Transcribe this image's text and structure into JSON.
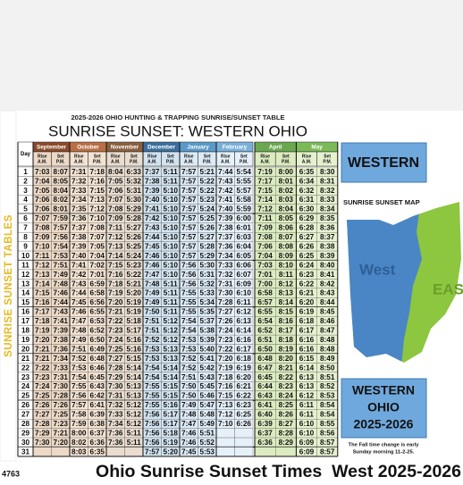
{
  "side_label": "SUNRISE SUNSET TABLES",
  "header": {
    "subtitle": "2025-2026 OHIO HUNTING & TRAPPING SUNRISE/SUNSET TABLE",
    "title": "SUNRISE SUNSET: WESTERN OHIO"
  },
  "table": {
    "day_label": "Day",
    "months": [
      "September",
      "October",
      "November",
      "December",
      "January",
      "February",
      "April",
      "May"
    ],
    "rise": "Rise",
    "set": "Set",
    "am": "A.M.",
    "pm": "P.M.",
    "rows": [
      [
        1,
        "7:03",
        "8:07",
        "7:31",
        "7:18",
        "8:04",
        "6:33",
        "7:37",
        "5:11",
        "7:57",
        "5:21",
        "7:44",
        "5:54",
        "7:19",
        "8:00",
        "6:35",
        "8:30"
      ],
      [
        2,
        "7:04",
        "8:05",
        "7:32",
        "7:16",
        "7:05",
        "5:32",
        "7:38",
        "5:11",
        "7:57",
        "5:22",
        "7:43",
        "5:55",
        "7:17",
        "8:01",
        "6:34",
        "8:31"
      ],
      [
        3,
        "7:05",
        "8:04",
        "7:33",
        "7:15",
        "7:06",
        "5:31",
        "7:39",
        "5:10",
        "7:57",
        "5:22",
        "7:42",
        "5:57",
        "7:15",
        "8:02",
        "6:32",
        "8:32"
      ],
      [
        4,
        "7:06",
        "8:02",
        "7:34",
        "7:13",
        "7:07",
        "5:30",
        "7:40",
        "5:10",
        "7:57",
        "5:23",
        "7:41",
        "5:58",
        "7:14",
        "8:03",
        "6:31",
        "8:33"
      ],
      [
        5,
        "7:06",
        "8:01",
        "7:35",
        "7:12",
        "7:08",
        "5:29",
        "7:41",
        "5:10",
        "7:57",
        "5:24",
        "7:40",
        "5:59",
        "7:12",
        "8:04",
        "6:30",
        "8:34"
      ],
      [
        6,
        "7:07",
        "7:59",
        "7:36",
        "7:10",
        "7:09",
        "5:28",
        "7:42",
        "5:10",
        "7:57",
        "5:25",
        "7:39",
        "6:00",
        "7:11",
        "8:05",
        "6:29",
        "8:35"
      ],
      [
        7,
        "7:08",
        "7:57",
        "7:37",
        "7:08",
        "7:11",
        "5:27",
        "7:43",
        "5:10",
        "7:57",
        "5:26",
        "7:38",
        "6:01",
        "7:09",
        "8:06",
        "6:28",
        "8:36"
      ],
      [
        8,
        "7:09",
        "7:56",
        "7:38",
        "7:07",
        "7:12",
        "5:26",
        "7:44",
        "5:10",
        "7:57",
        "5:27",
        "7:37",
        "6:03",
        "7:08",
        "8:07",
        "6:27",
        "8:37"
      ],
      [
        9,
        "7:10",
        "7:54",
        "7:39",
        "7:05",
        "7:13",
        "5:25",
        "7:45",
        "5:10",
        "7:57",
        "5:28",
        "7:36",
        "6:04",
        "7:06",
        "8:08",
        "6:26",
        "8:38"
      ],
      [
        10,
        "7:11",
        "7:53",
        "7:40",
        "7:04",
        "7:14",
        "5:24",
        "7:46",
        "5:10",
        "7:57",
        "5:29",
        "7:34",
        "6:05",
        "7:04",
        "8:09",
        "6:25",
        "8:39"
      ],
      [
        11,
        "7:12",
        "7:51",
        "7:41",
        "7:02",
        "7:15",
        "5:23",
        "7:46",
        "5:10",
        "7:56",
        "5:30",
        "7:33",
        "6:06",
        "7:03",
        "8:10",
        "6:24",
        "8:40"
      ],
      [
        12,
        "7:13",
        "7:49",
        "7:42",
        "7:01",
        "7:16",
        "5:22",
        "7:47",
        "5:10",
        "7:56",
        "5:31",
        "7:32",
        "6:07",
        "7:01",
        "8:11",
        "6:23",
        "8:41"
      ],
      [
        13,
        "7:14",
        "7:48",
        "7:43",
        "6:59",
        "7:18",
        "5:21",
        "7:48",
        "5:11",
        "7:56",
        "5:32",
        "7:31",
        "6:09",
        "7:00",
        "8:12",
        "6:22",
        "8:42"
      ],
      [
        14,
        "7:15",
        "7:46",
        "7:44",
        "6:58",
        "7:19",
        "5:20",
        "7:49",
        "5:11",
        "7:55",
        "5:33",
        "7:30",
        "6:10",
        "6:58",
        "8:13",
        "6:21",
        "8:43"
      ],
      [
        15,
        "7:16",
        "7:44",
        "7:45",
        "6:56",
        "7:20",
        "5:19",
        "7:49",
        "5:11",
        "7:55",
        "5:34",
        "7:28",
        "6:11",
        "6:57",
        "8:14",
        "6:20",
        "8:44"
      ],
      [
        16,
        "7:17",
        "7:43",
        "7:46",
        "6:55",
        "7:21",
        "5:19",
        "7:50",
        "5:11",
        "7:55",
        "5:35",
        "7:27",
        "6:12",
        "6:55",
        "8:15",
        "6:19",
        "8:45"
      ],
      [
        17,
        "7:18",
        "7:41",
        "7:47",
        "6:53",
        "7:22",
        "5:18",
        "7:51",
        "5:12",
        "7:54",
        "5:37",
        "7:26",
        "6:13",
        "6:54",
        "8:16",
        "6:18",
        "8:46"
      ],
      [
        18,
        "7:19",
        "7:39",
        "7:48",
        "6:52",
        "7:23",
        "5:17",
        "7:51",
        "5:12",
        "7:54",
        "5:38",
        "7:24",
        "6:14",
        "6:52",
        "8:17",
        "6:17",
        "8:47"
      ],
      [
        19,
        "7:20",
        "7:38",
        "7:49",
        "6:50",
        "7:24",
        "5:16",
        "7:52",
        "5:12",
        "7:53",
        "5:39",
        "7:23",
        "6:16",
        "6:51",
        "8:18",
        "6:16",
        "8:48"
      ],
      [
        20,
        "7:21",
        "7:36",
        "7:51",
        "6:49",
        "7:25",
        "5:16",
        "7:53",
        "5:13",
        "7:53",
        "5:40",
        "7:22",
        "6:17",
        "6:50",
        "8:19",
        "6:16",
        "8:48"
      ],
      [
        21,
        "7:21",
        "7:34",
        "7:52",
        "6:48",
        "7:27",
        "5:15",
        "7:53",
        "5:13",
        "7:52",
        "5:41",
        "7:20",
        "6:18",
        "6:48",
        "8:20",
        "6:15",
        "8:49"
      ],
      [
        22,
        "7:22",
        "7:33",
        "7:53",
        "6:46",
        "7:28",
        "5:14",
        "7:54",
        "5:14",
        "7:52",
        "5:42",
        "7:19",
        "6:19",
        "6:47",
        "8:21",
        "6:14",
        "8:50"
      ],
      [
        23,
        "7:23",
        "7:31",
        "7:54",
        "6:45",
        "7:29",
        "5:14",
        "7:54",
        "5:14",
        "7:51",
        "5:43",
        "7:18",
        "6:20",
        "6:45",
        "8:22",
        "6:13",
        "8:51"
      ],
      [
        24,
        "7:24",
        "7:30",
        "7:55",
        "6:43",
        "7:30",
        "5:13",
        "7:55",
        "5:15",
        "7:50",
        "5:45",
        "7:16",
        "6:21",
        "6:44",
        "8:23",
        "6:13",
        "8:52"
      ],
      [
        25,
        "7:25",
        "7:28",
        "7:56",
        "6:42",
        "7:31",
        "5:13",
        "7:55",
        "5:15",
        "7:50",
        "5:46",
        "7:15",
        "6:22",
        "6:43",
        "8:24",
        "6:12",
        "8:53"
      ],
      [
        26,
        "7:26",
        "7:26",
        "7:57",
        "6:41",
        "7:32",
        "5:12",
        "7:55",
        "5:16",
        "7:49",
        "5:47",
        "7:13",
        "6:23",
        "6:41",
        "8:25",
        "6:11",
        "8:54"
      ],
      [
        27,
        "7:27",
        "7:25",
        "7:58",
        "6:39",
        "7:33",
        "5:12",
        "7:56",
        "5:17",
        "7:48",
        "5:48",
        "7:12",
        "6:25",
        "6:40",
        "8:26",
        "6:11",
        "8:54"
      ],
      [
        28,
        "7:28",
        "7:23",
        "7:59",
        "6:38",
        "7:34",
        "5:12",
        "7:56",
        "5:17",
        "7:47",
        "5:49",
        "7:10",
        "6:26",
        "6:39",
        "8:27",
        "6:10",
        "8:55"
      ],
      [
        29,
        "7:29",
        "7:21",
        "8:00",
        "6:37",
        "7:36",
        "5:11",
        "7:56",
        "5:18",
        "7:46",
        "5:51",
        null,
        null,
        "6:37",
        "8:28",
        "6:10",
        "8:56"
      ],
      [
        30,
        "7:30",
        "7:20",
        "8:02",
        "6:36",
        "7:36",
        "5:11",
        "7:56",
        "5:19",
        "7:46",
        "5:52",
        null,
        null,
        "6:36",
        "8:29",
        "6:09",
        "8:57"
      ],
      [
        31,
        null,
        null,
        "8:03",
        "6:35",
        null,
        null,
        "7:57",
        "5:20",
        "7:45",
        "5:53",
        null,
        null,
        null,
        null,
        "6:09",
        "8:57"
      ]
    ]
  },
  "panel": {
    "region": "WESTERN",
    "map_title": "SUNRISE SUNSET MAP",
    "map_labels": [
      "West",
      "EAS"
    ],
    "box": [
      "WESTERN",
      "OHIO",
      "2025-2026"
    ],
    "note": [
      "The Fall time change is early",
      "Sunday morning 11-2-25."
    ]
  },
  "footer": {
    "code": "4763",
    "title": "Ohio Sunrise Sunset Times  West 2025-2026"
  }
}
